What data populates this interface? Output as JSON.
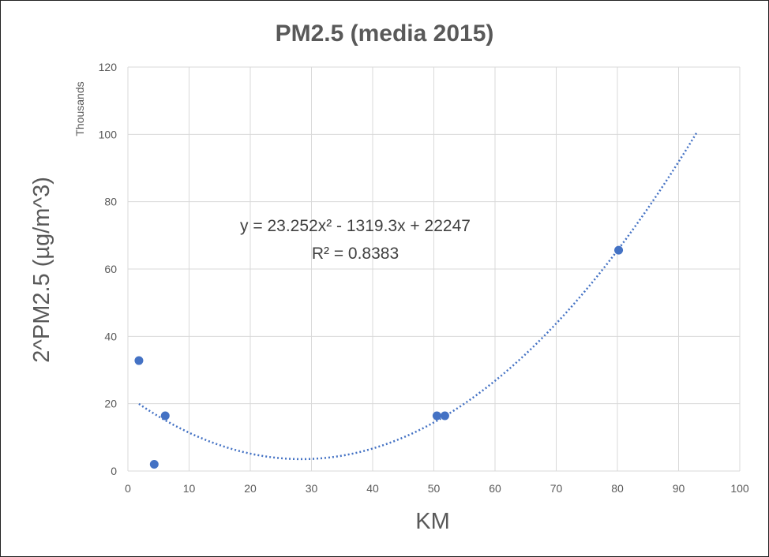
{
  "chart_data": {
    "type": "scatter",
    "title": "PM2.5 (media 2015)",
    "xlabel": "KM",
    "ylabel": "2^PM2.5 (µg/m^3)",
    "y_units_label": "Thousands",
    "xlim": [
      0,
      100
    ],
    "ylim": [
      0,
      120
    ],
    "x_ticks": [
      0,
      10,
      20,
      30,
      40,
      50,
      60,
      70,
      80,
      90,
      100
    ],
    "y_ticks": [
      0,
      20,
      40,
      60,
      80,
      100,
      120
    ],
    "grid": "horizontal",
    "legend": "none",
    "series": [
      {
        "x": [
          1.8,
          4.3,
          6.1,
          50.5,
          51.8,
          80.2
        ],
        "y": [
          32.8,
          2.0,
          16.4,
          16.4,
          16.4,
          65.6
        ]
      }
    ],
    "trendline": {
      "type": "polynomial",
      "order": 2,
      "coefficients": [
        23.252,
        -1319.3,
        22247
      ],
      "x_range": [
        1.8,
        93
      ],
      "equation_text": "y = 23.252x² - 1319.3x + 22247",
      "r2_text": "R² = 0.8383"
    },
    "colors": {
      "marker": "#4472C4",
      "trendline": "#4472C4",
      "grid": "#d9d9d9",
      "text": "#595959"
    }
  }
}
